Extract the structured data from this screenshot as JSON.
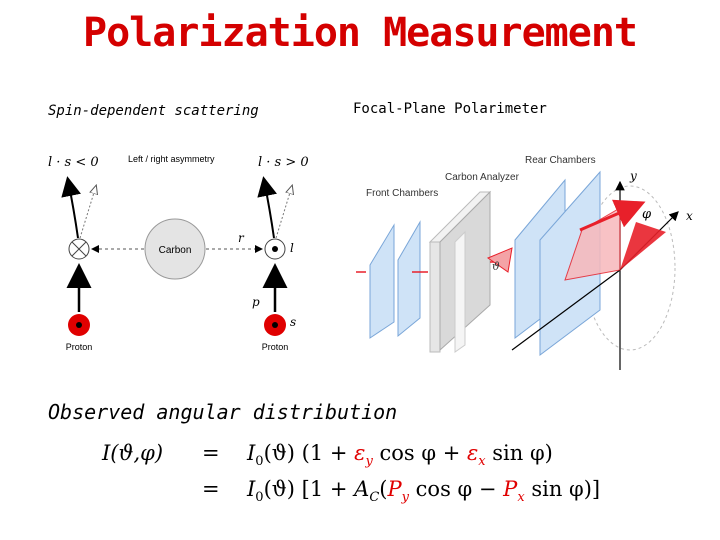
{
  "title": "Polarization Measurement",
  "subtitle_left": "Spin-dependent scattering",
  "subtitle_right": "Focal-Plane Polarimeter",
  "scattering": {
    "cond_left": "l · s < 0",
    "cond_right": "l · s > 0",
    "asym_label": "Left / right asymmetry",
    "carbon_label": "Carbon",
    "r_label": "r",
    "l_label": "l",
    "p_label": "p",
    "s_label": "s",
    "proton_left": "Proton",
    "proton_right": "Proton",
    "colors": {
      "proton": "#e00000"
    }
  },
  "polarimeter": {
    "rear_chambers": "Rear Chambers",
    "carbon_analyzer": "Carbon Analyzer",
    "front_chambers": "Front Chambers",
    "theta": "ϑ",
    "phi": "φ",
    "y_axis": "y",
    "x_axis": "x",
    "colors": {
      "chamber": "#cfe3f7",
      "arrow": "#e8202a"
    }
  },
  "observed_label": "Observed angular distribution",
  "equation": {
    "line1": {
      "lhs": "I(ϑ,φ)",
      "eq": "=",
      "t1": "I",
      "t1sub": "0",
      "t2": "(ϑ) (1 + ",
      "e1": "ε",
      "e1sub": "y",
      "t3": " cos φ + ",
      "e2": "ε",
      "e2sub": "x",
      "t4": " sin φ)"
    },
    "line2": {
      "eq": "=",
      "t1": "I",
      "t1sub": "0",
      "t2": "(ϑ) [1 + ",
      "a": "A",
      "asub": "C",
      "t3": "(",
      "p1": "P",
      "p1sub": "y",
      "t4": " cos φ − ",
      "p2": "P",
      "p2sub": "x",
      "t5": " sin φ)]"
    },
    "colors": {
      "red": "#e00000"
    }
  }
}
